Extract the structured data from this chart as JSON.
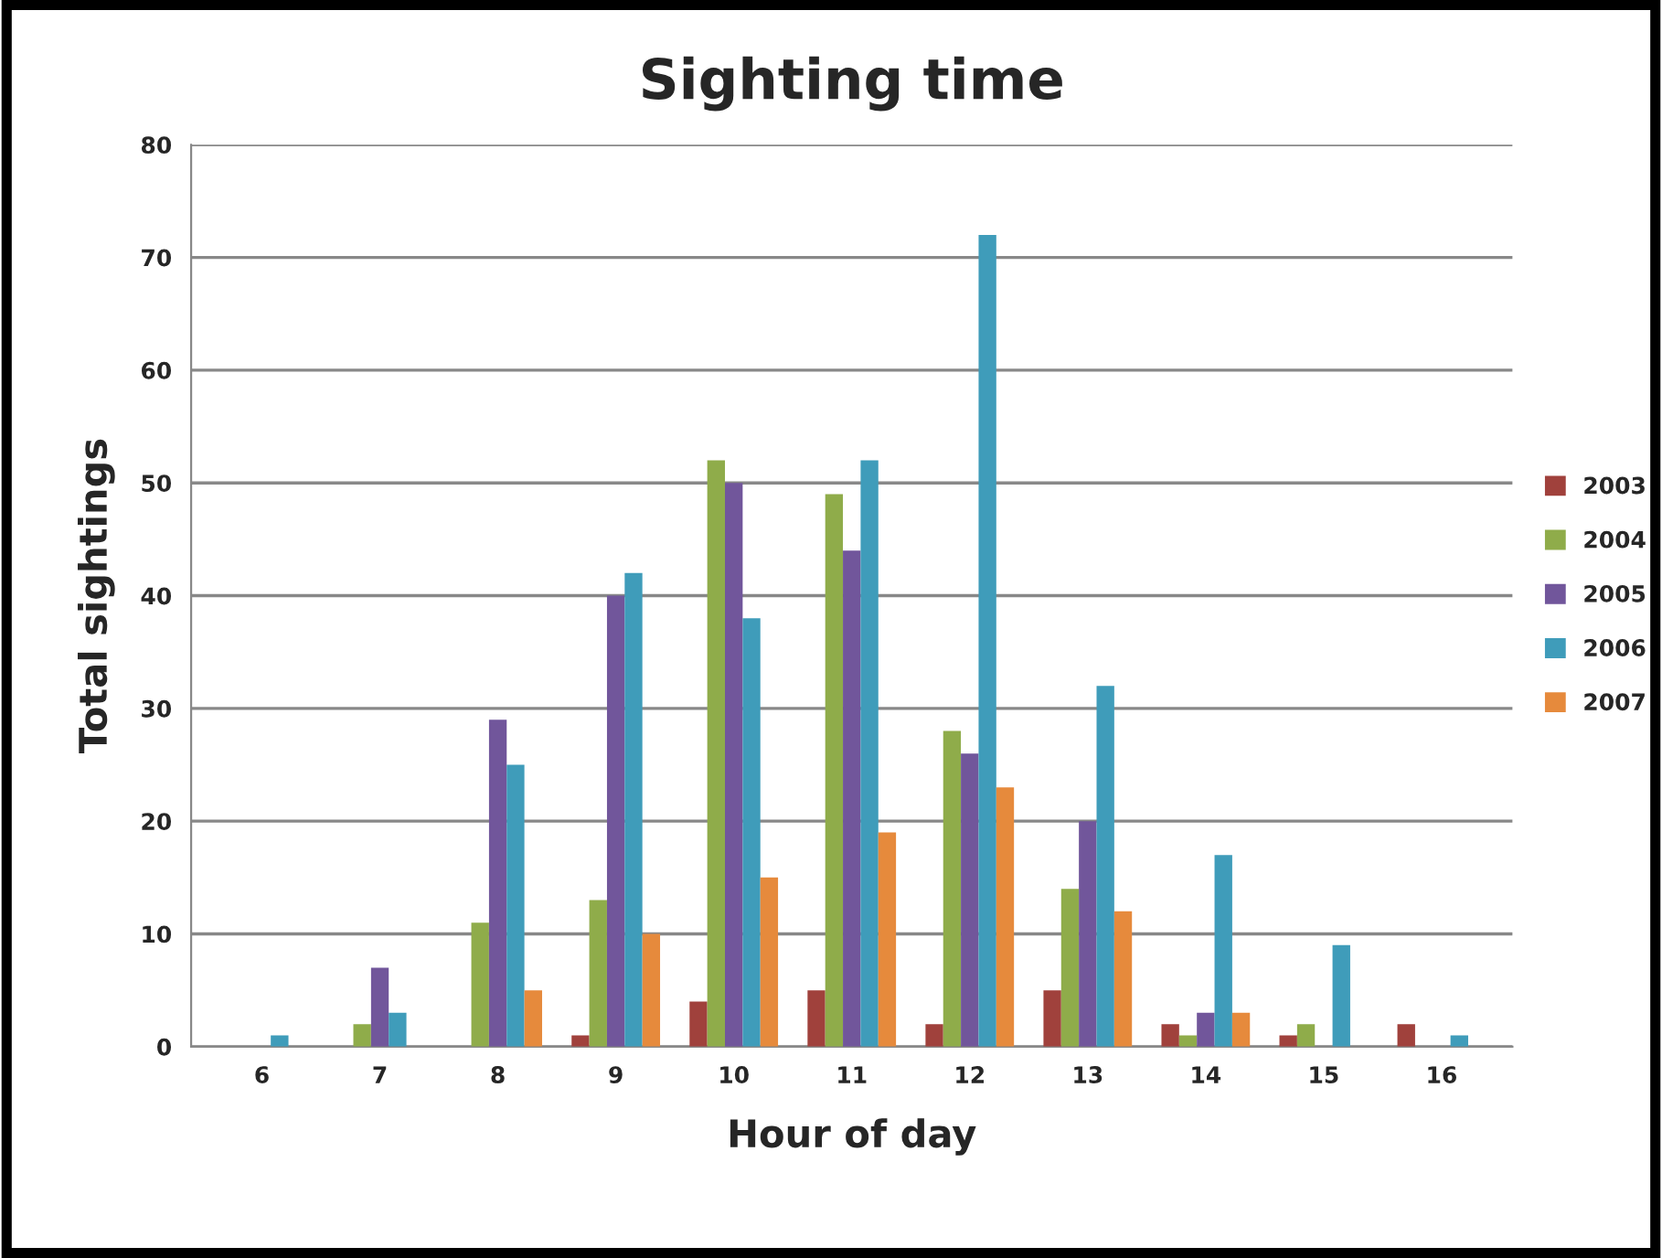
{
  "chart_data": {
    "type": "bar",
    "title": "Sighting time",
    "xlabel": "Hour of day",
    "ylabel": "Total sightings",
    "categories": [
      "6",
      "7",
      "8",
      "9",
      "10",
      "11",
      "12",
      "13",
      "14",
      "15",
      "16"
    ],
    "series": [
      {
        "name": "2003",
        "color": "#a0413c",
        "values": [
          0,
          0,
          0,
          1,
          4,
          5,
          2,
          5,
          2,
          1,
          2
        ]
      },
      {
        "name": "2004",
        "color": "#8fac4a",
        "values": [
          0,
          2,
          11,
          13,
          52,
          49,
          28,
          14,
          1,
          2,
          0
        ]
      },
      {
        "name": "2005",
        "color": "#71569b",
        "values": [
          0,
          7,
          29,
          40,
          50,
          44,
          26,
          20,
          3,
          0,
          0
        ]
      },
      {
        "name": "2006",
        "color": "#3f9cba",
        "values": [
          1,
          3,
          25,
          42,
          38,
          52,
          72,
          32,
          17,
          9,
          1
        ]
      },
      {
        "name": "2007",
        "color": "#e68a3c",
        "values": [
          0,
          0,
          5,
          10,
          15,
          19,
          23,
          12,
          3,
          0,
          0
        ]
      }
    ],
    "ylim": [
      0,
      80
    ],
    "yticks": [
      0,
      10,
      20,
      30,
      40,
      50,
      60,
      70,
      80
    ],
    "grid": "y",
    "legend": "right"
  }
}
